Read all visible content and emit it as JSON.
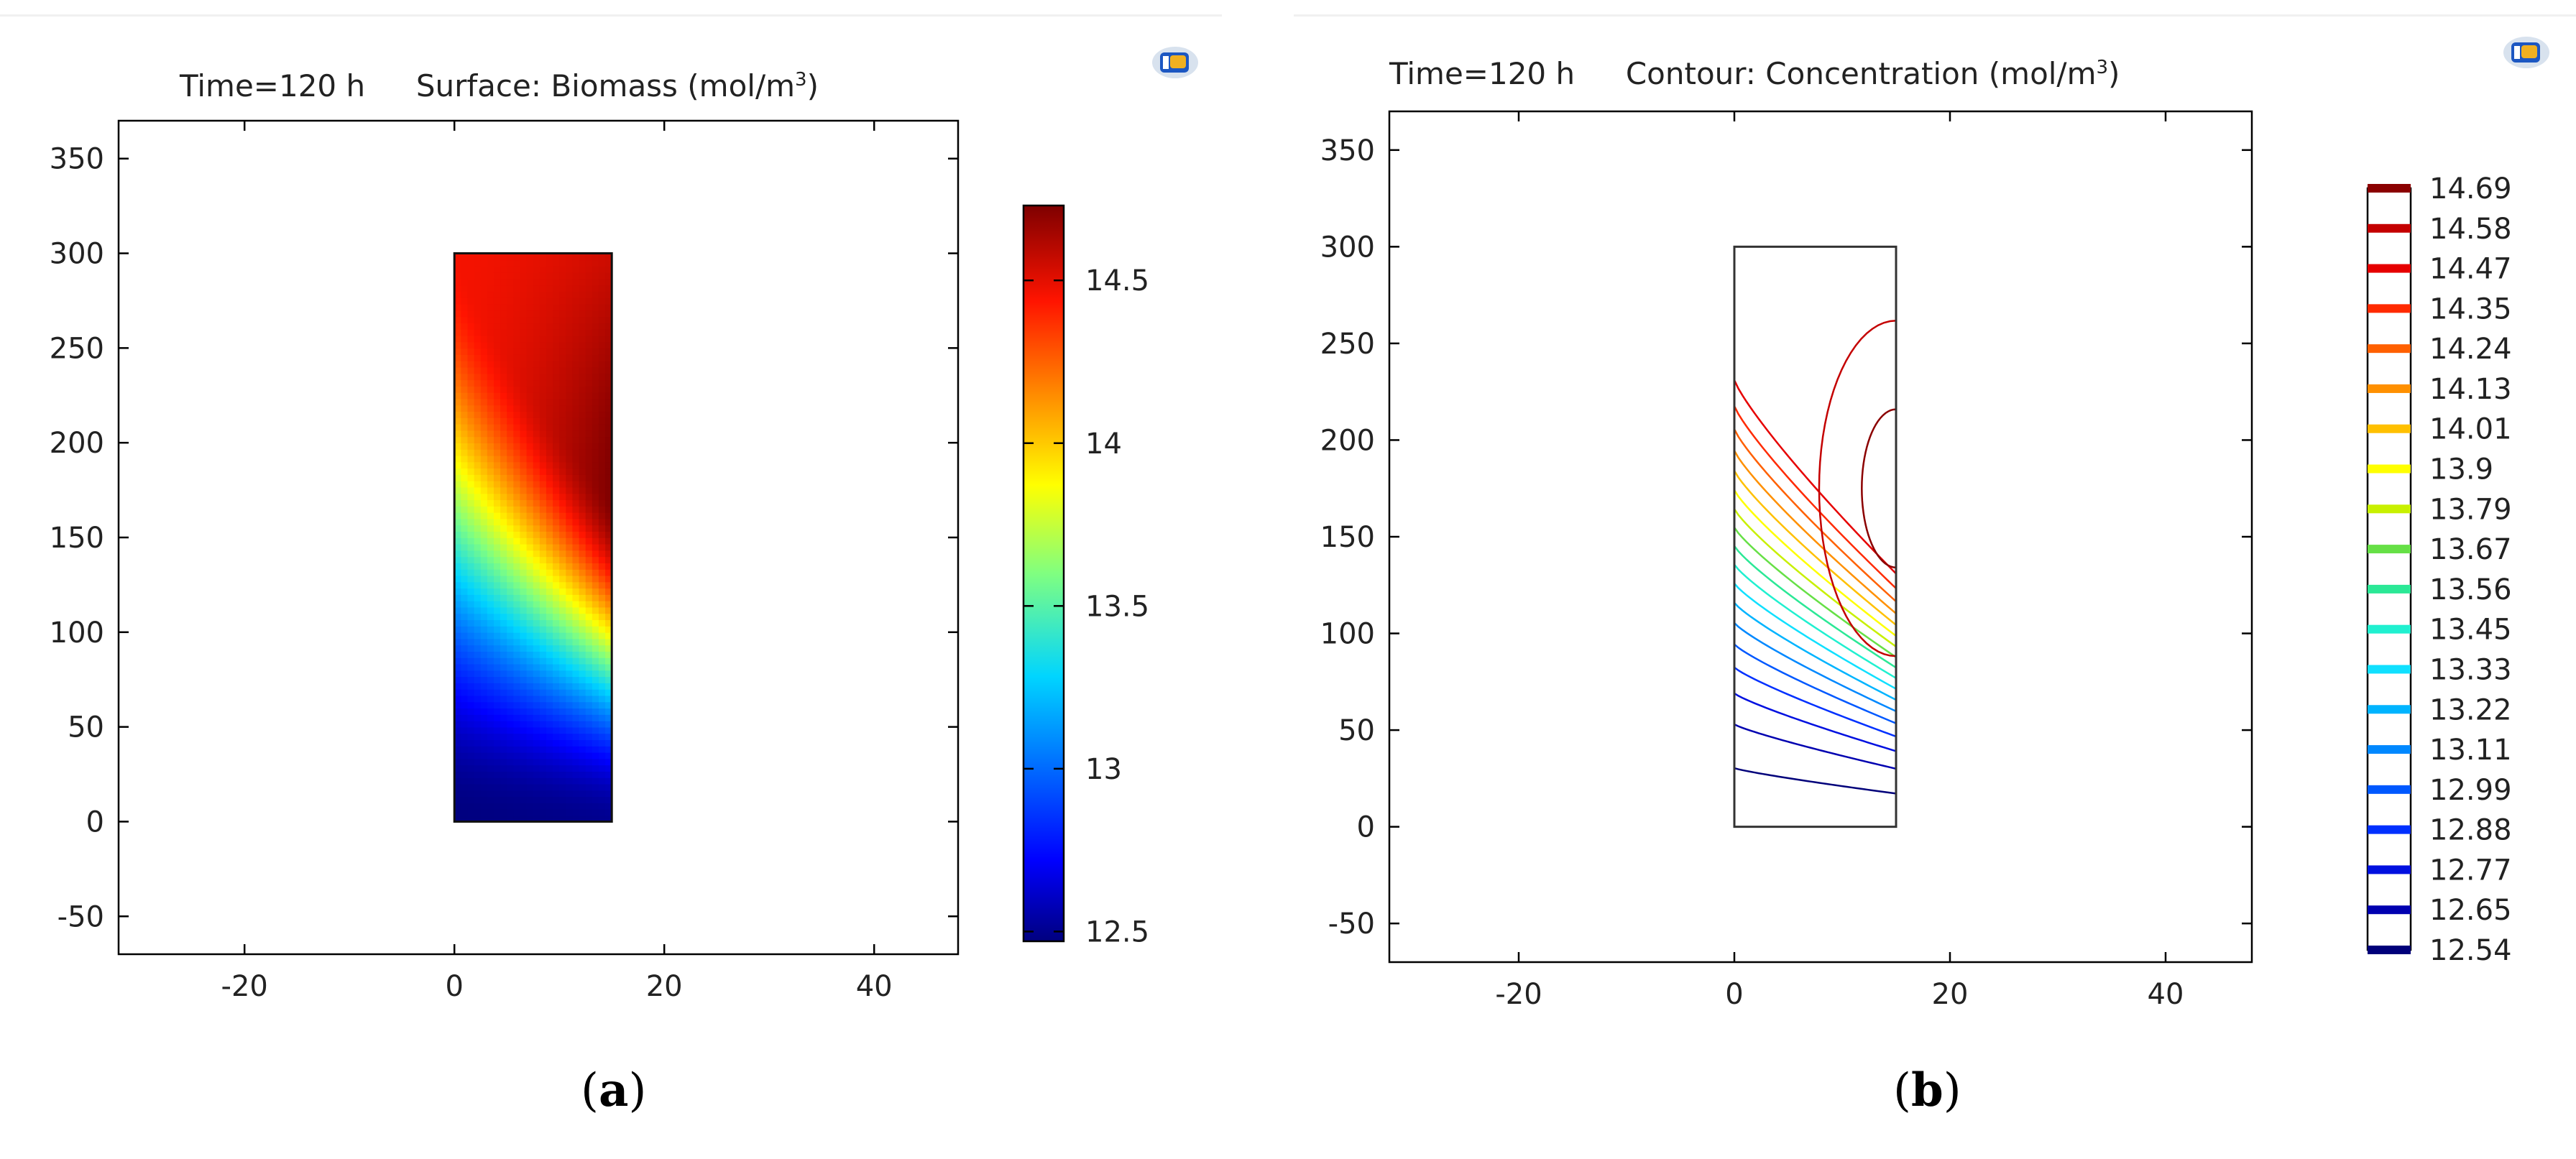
{
  "chart_data": [
    {
      "type": "heatmap",
      "label": "a",
      "title_prefix": "Time=120 h",
      "title_main": "Surface: Biomass (mol/m",
      "title_sup": "3",
      "title_close": ")",
      "xlim": [
        -32,
        48
      ],
      "ylim": [
        -70,
        370
      ],
      "xticks": [
        -20,
        0,
        20,
        40
      ],
      "yticks": [
        -50,
        0,
        50,
        100,
        150,
        200,
        250,
        300,
        350
      ],
      "domain": {
        "x": [
          0,
          15
        ],
        "y": [
          0,
          300
        ]
      },
      "colorbar": {
        "min": 12.47,
        "max": 14.73,
        "ticks": [
          12.5,
          13,
          13.5,
          14,
          14.5
        ]
      },
      "field_peak": {
        "x": 15,
        "y": 170,
        "value": 14.73
      },
      "field_min": {
        "x": 0,
        "y": 0,
        "value": 12.47
      }
    },
    {
      "type": "contour",
      "label": "b",
      "title_prefix": "Time=120 h",
      "title_main": "Contour: Concentration (mol/m",
      "title_sup": "3",
      "title_close": ")",
      "xlim": [
        -32,
        48
      ],
      "ylim": [
        -70,
        370
      ],
      "xticks": [
        -20,
        0,
        20,
        40
      ],
      "yticks": [
        -50,
        0,
        50,
        100,
        150,
        200,
        250,
        300,
        350
      ],
      "domain": {
        "x": [
          0,
          15
        ],
        "y": [
          0,
          300
        ]
      },
      "levels": [
        14.69,
        14.58,
        14.47,
        14.35,
        14.24,
        14.13,
        14.01,
        13.9,
        13.79,
        13.67,
        13.56,
        13.45,
        13.33,
        13.22,
        13.11,
        12.99,
        12.88,
        12.77,
        12.65,
        12.54
      ],
      "level_labels": [
        "14.69",
        "14.58",
        "14.47",
        "14.35",
        "14.24",
        "14.13",
        "14.01",
        "13.9",
        "13.79",
        "13.67",
        "13.56",
        "13.45",
        "13.33",
        "13.22",
        "13.11",
        "12.99",
        "12.88",
        "12.77",
        "12.65",
        "12.54"
      ],
      "level_colors": [
        "#8b0000",
        "#c40000",
        "#e60000",
        "#ff2a00",
        "#ff6000",
        "#ff9000",
        "#ffc000",
        "#ffff00",
        "#c8f000",
        "#66e046",
        "#2be896",
        "#20f0d0",
        "#10e0ff",
        "#00b4ff",
        "#0088ff",
        "#0058ff",
        "#0030ff",
        "#0010e0",
        "#0000b0",
        "#00007a"
      ]
    }
  ],
  "colors": {
    "frame": "#000000",
    "domain_border": "#333333",
    "logo_blue": "#1c57c2",
    "logo_gold": "#f0b020"
  }
}
